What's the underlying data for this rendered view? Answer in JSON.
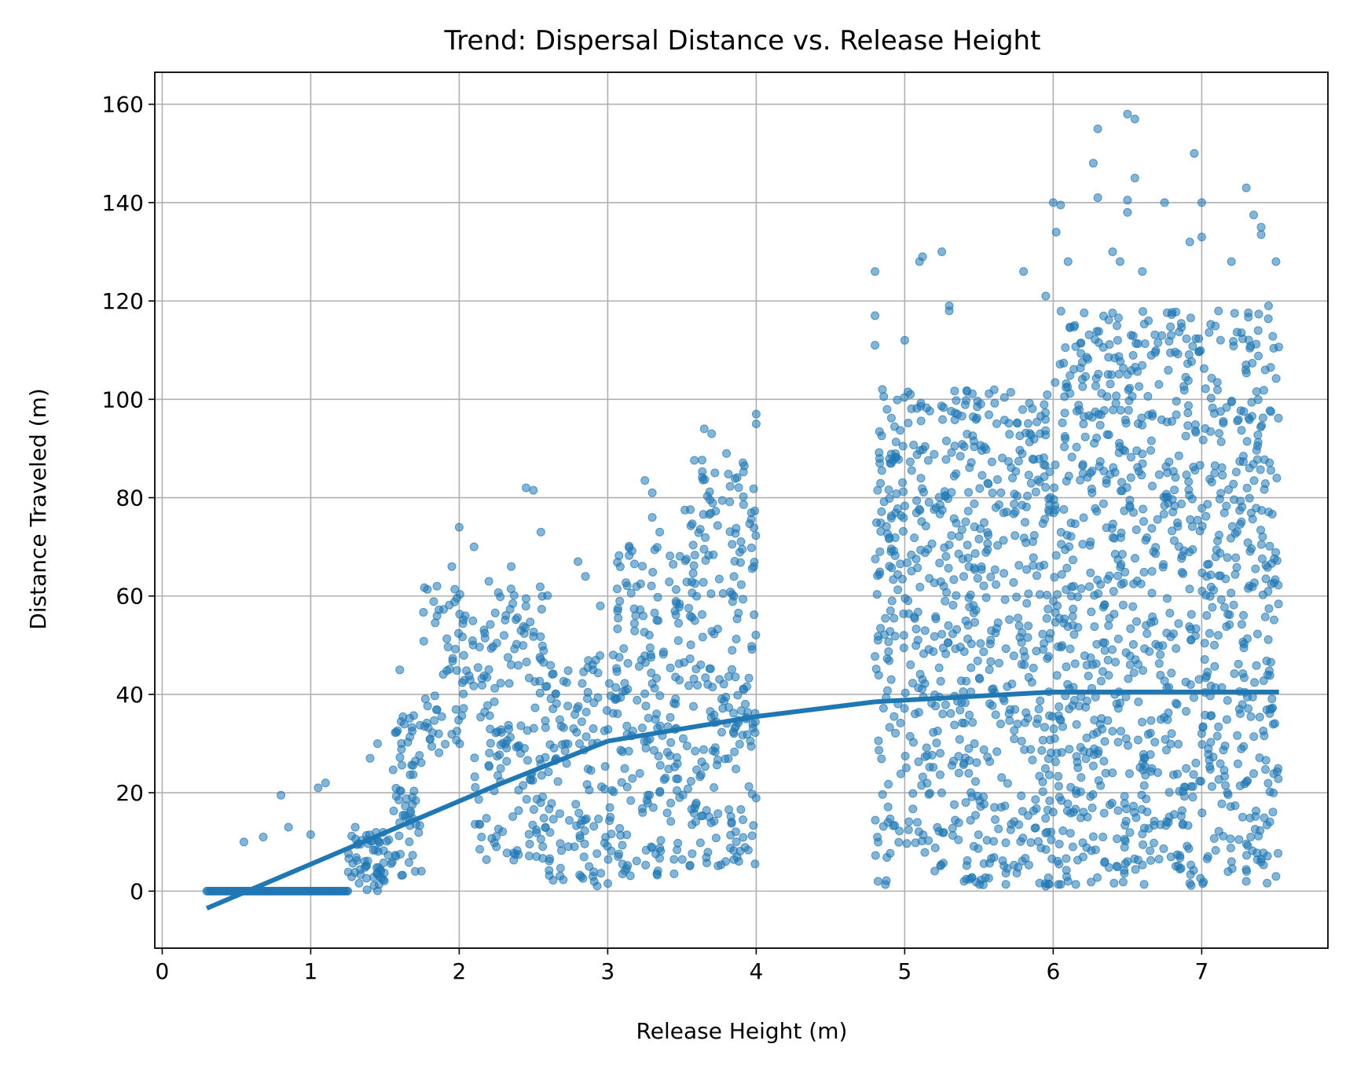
{
  "chart_data": {
    "type": "scatter",
    "title": "Trend: Dispersal Distance vs. Release Height",
    "xlabel": "Release Height (m)",
    "ylabel": "Distance Traveled (m)",
    "xlim": [
      -0.05,
      7.85
    ],
    "ylim": [
      -11.6,
      166.5
    ],
    "xticks": [
      0,
      1,
      2,
      3,
      4,
      5,
      6,
      7
    ],
    "yticks": [
      0,
      20,
      40,
      60,
      80,
      100,
      120,
      140,
      160
    ],
    "xtick_labels": [
      "0",
      "1",
      "2",
      "3",
      "4",
      "5",
      "6",
      "7"
    ],
    "ytick_labels": [
      "0",
      "20",
      "40",
      "60",
      "80",
      "100",
      "120",
      "140",
      "160"
    ],
    "grid": true,
    "legend": "none",
    "point_color": "#1f77b4",
    "point_alpha": 0.55,
    "line_color": "#1f77b4",
    "regions": [
      {
        "x": [
          0.3,
          1.25
        ],
        "y_min": 0,
        "y_max": 0
      },
      {
        "x": [
          1.25,
          1.55
        ],
        "y_min": 0,
        "y_max": 12
      },
      {
        "x": [
          1.55,
          1.75
        ],
        "y_min": 3,
        "y_max": 36
      },
      {
        "x": [
          1.75,
          2.1
        ],
        "y_min": 28,
        "y_max": 62
      },
      {
        "x": [
          2.1,
          2.6
        ],
        "y_min": 6,
        "y_max": 62
      },
      {
        "x": [
          2.6,
          3.05
        ],
        "y_min": 1,
        "y_max": 50
      },
      {
        "x": [
          3.05,
          3.5
        ],
        "y_min": 3,
        "y_max": 72
      },
      {
        "x": [
          3.5,
          4.0
        ],
        "y_min": 5,
        "y_max": 88
      },
      {
        "x": [
          4.8,
          6.0
        ],
        "y_min": 1,
        "y_max": 102
      },
      {
        "x": [
          6.0,
          7.52
        ],
        "y_min": 1,
        "y_max": 118
      }
    ],
    "outliers": [
      [
        0.55,
        10
      ],
      [
        0.68,
        11
      ],
      [
        0.8,
        19.5
      ],
      [
        0.85,
        13
      ],
      [
        1.0,
        11.5
      ],
      [
        1.05,
        21
      ],
      [
        1.1,
        22
      ],
      [
        1.3,
        13
      ],
      [
        1.4,
        27
      ],
      [
        1.45,
        30
      ],
      [
        1.6,
        45
      ],
      [
        1.85,
        62
      ],
      [
        1.95,
        66
      ],
      [
        2.0,
        74
      ],
      [
        2.1,
        70
      ],
      [
        2.2,
        63
      ],
      [
        2.45,
        82
      ],
      [
        2.5,
        81.5
      ],
      [
        2.35,
        66
      ],
      [
        2.55,
        73
      ],
      [
        2.8,
        67
      ],
      [
        2.85,
        64
      ],
      [
        2.95,
        58
      ],
      [
        3.25,
        83.5
      ],
      [
        3.3,
        81
      ],
      [
        3.3,
        76
      ],
      [
        3.35,
        73
      ],
      [
        3.65,
        94
      ],
      [
        3.7,
        93
      ],
      [
        3.8,
        89
      ],
      [
        4.0,
        97
      ],
      [
        4.0,
        95
      ],
      [
        2.15,
        11
      ],
      [
        2.25,
        9
      ],
      [
        2.9,
        3
      ],
      [
        3.1,
        3.5
      ],
      [
        4.8,
        126
      ],
      [
        4.8,
        117
      ],
      [
        4.8,
        111
      ],
      [
        4.85,
        102
      ],
      [
        5.1,
        128
      ],
      [
        5.12,
        129
      ],
      [
        5.3,
        118
      ],
      [
        5.25,
        130
      ],
      [
        5.3,
        119
      ],
      [
        5.0,
        112
      ],
      [
        5.8,
        126
      ],
      [
        6.0,
        140
      ],
      [
        6.02,
        134
      ],
      [
        6.05,
        139.5
      ],
      [
        6.1,
        128
      ],
      [
        6.27,
        148
      ],
      [
        6.3,
        155
      ],
      [
        6.3,
        141
      ],
      [
        6.5,
        158
      ],
      [
        6.55,
        157
      ],
      [
        6.55,
        145
      ],
      [
        6.5,
        138
      ],
      [
        6.5,
        140.5
      ],
      [
        6.75,
        140
      ],
      [
        6.95,
        150
      ],
      [
        7.0,
        140
      ],
      [
        7.0,
        133
      ],
      [
        7.3,
        143
      ],
      [
        7.35,
        137.5
      ],
      [
        7.4,
        135
      ],
      [
        7.4,
        133.5
      ],
      [
        7.5,
        128
      ],
      [
        7.2,
        128
      ],
      [
        6.92,
        132
      ],
      [
        6.4,
        130
      ],
      [
        6.45,
        128
      ],
      [
        6.6,
        126
      ],
      [
        7.45,
        119
      ],
      [
        5.95,
        121
      ],
      [
        5.95,
        1
      ],
      [
        6.1,
        2
      ],
      [
        7.3,
        2
      ],
      [
        7.5,
        3
      ],
      [
        5.4,
        2
      ],
      [
        4.82,
        2
      ]
    ],
    "trend_line": {
      "segments": [
        {
          "x": [
            0.3,
            2.25
          ],
          "y": [
            -3.5,
            21.5
          ]
        },
        {
          "x": [
            2.25,
            3.0
          ],
          "y": [
            21.5,
            30.5
          ]
        },
        {
          "x": [
            3.0,
            4.0
          ],
          "y": [
            30.5,
            35.5
          ]
        },
        {
          "x": [
            4.0,
            4.8
          ],
          "y": [
            35.5,
            38.5
          ]
        },
        {
          "x": [
            4.8,
            6.0
          ],
          "y": [
            38.5,
            40.5
          ]
        },
        {
          "x": [
            6.0,
            7.52
          ],
          "y": [
            40.5,
            40.5
          ]
        }
      ]
    }
  }
}
